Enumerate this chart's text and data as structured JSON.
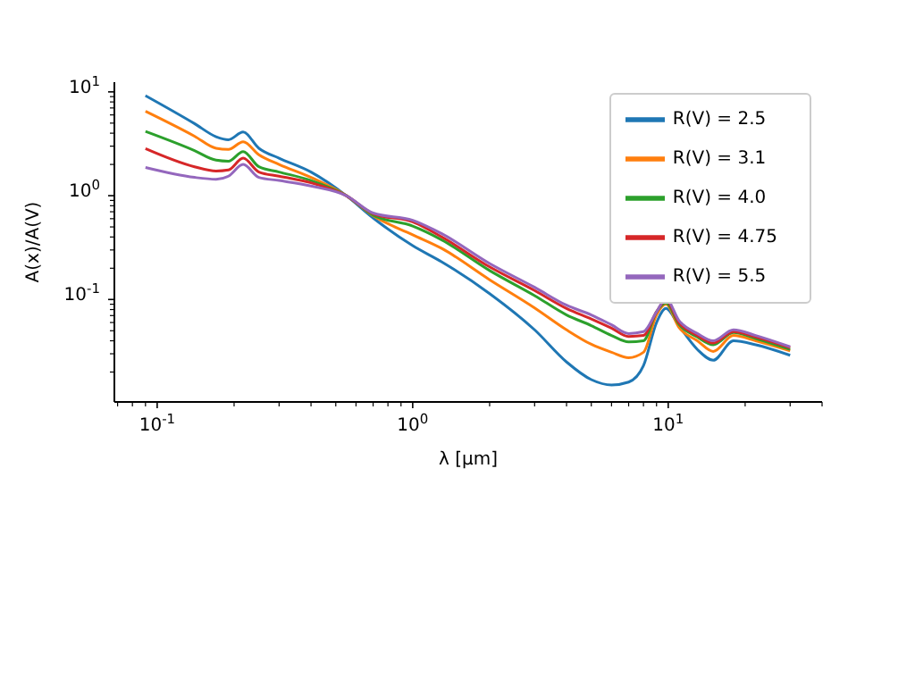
{
  "chart_data": {
    "type": "line",
    "xlabel": "λ [μm]",
    "ylabel": "A(x)/A(V)",
    "log": "xy",
    "legend": "top right",
    "grid": false,
    "marker": "none",
    "line_style": "solid",
    "x": [
      0.09,
      0.14,
      0.17,
      0.19,
      0.217,
      0.25,
      0.3,
      0.4,
      0.55,
      0.7,
      1.0,
      1.3,
      2,
      3,
      4,
      5,
      6,
      7,
      8,
      9,
      9.8,
      11,
      13,
      15,
      18,
      22,
      30
    ],
    "series": [
      {
        "name": "R(V) = 2.5",
        "color": "#1f77b4",
        "values": [
          9.2,
          4.95,
          3.7,
          3.46,
          4.1,
          2.86,
          2.3,
          1.69,
          1.0,
          0.61,
          0.33,
          0.23,
          0.114,
          0.051,
          0.025,
          0.0169,
          0.015,
          0.016,
          0.023,
          0.06,
          0.082,
          0.056,
          0.033,
          0.026,
          0.04,
          0.0366,
          0.029
        ]
      },
      {
        "name": "R(V) = 3.1",
        "color": "#ff7f0e",
        "values": [
          6.5,
          3.74,
          2.86,
          2.79,
          3.3,
          2.48,
          2.0,
          1.5,
          1.0,
          0.64,
          0.42,
          0.31,
          0.155,
          0.083,
          0.051,
          0.037,
          0.031,
          0.0275,
          0.031,
          0.071,
          0.09,
          0.054,
          0.04,
          0.0316,
          0.045,
          0.04,
          0.032
        ]
      },
      {
        "name": "R(V) = 4.0",
        "color": "#2ca02c",
        "values": [
          4.16,
          2.72,
          2.2,
          2.15,
          2.66,
          1.9,
          1.69,
          1.4,
          1.0,
          0.65,
          0.51,
          0.375,
          0.19,
          0.109,
          0.071,
          0.056,
          0.045,
          0.039,
          0.04,
          0.076,
          0.093,
          0.058,
          0.0435,
          0.0366,
          0.048,
          0.042,
          0.033
        ]
      },
      {
        "name": "R(V) = 4.75",
        "color": "#d62728",
        "values": [
          2.84,
          1.9,
          1.73,
          1.77,
          2.3,
          1.69,
          1.54,
          1.33,
          1.0,
          0.67,
          0.56,
          0.4,
          0.206,
          0.122,
          0.082,
          0.065,
          0.053,
          0.044,
          0.045,
          0.076,
          0.098,
          0.06,
          0.045,
          0.038,
          0.049,
          0.0435,
          0.0343
        ]
      },
      {
        "name": "R(V) = 5.5",
        "color": "#9467bd",
        "values": [
          1.87,
          1.5,
          1.44,
          1.54,
          2.0,
          1.5,
          1.4,
          1.24,
          1.0,
          0.68,
          0.58,
          0.43,
          0.222,
          0.131,
          0.088,
          0.071,
          0.057,
          0.047,
          0.049,
          0.076,
          0.102,
          0.063,
          0.047,
          0.04,
          0.051,
          0.045,
          0.035
        ]
      }
    ],
    "xlim": [
      0.068,
      40
    ],
    "ylim": [
      0.0103,
      12.4
    ],
    "xticks": [
      {
        "value": 0.07,
        "label": null
      },
      {
        "value": 0.08,
        "label": null
      },
      {
        "value": 0.09,
        "label": null
      },
      {
        "value": 0.1,
        "label": "10$^{-1}$"
      },
      {
        "value": 0.2,
        "label": null
      },
      {
        "value": 0.3,
        "label": null
      },
      {
        "value": 0.4,
        "label": null
      },
      {
        "value": 0.5,
        "label": null
      },
      {
        "value": 0.6,
        "label": null
      },
      {
        "value": 0.7,
        "label": null
      },
      {
        "value": 0.8,
        "label": null
      },
      {
        "value": 0.9,
        "label": null
      },
      {
        "value": 1,
        "label": "10$^{0}$"
      },
      {
        "value": 2,
        "label": null
      },
      {
        "value": 3,
        "label": null
      },
      {
        "value": 4,
        "label": null
      },
      {
        "value": 5,
        "label": null
      },
      {
        "value": 6,
        "label": null
      },
      {
        "value": 7,
        "label": null
      },
      {
        "value": 8,
        "label": null
      },
      {
        "value": 9,
        "label": null
      },
      {
        "value": 10,
        "label": "10$^{1}$"
      },
      {
        "value": 20,
        "label": null
      },
      {
        "value": 30,
        "label": null
      },
      {
        "value": 40,
        "label": null
      }
    ],
    "yticks": [
      {
        "value": 0.02,
        "label": null
      },
      {
        "value": 0.03,
        "label": null
      },
      {
        "value": 0.04,
        "label": null
      },
      {
        "value": 0.05,
        "label": null
      },
      {
        "value": 0.06,
        "label": null
      },
      {
        "value": 0.07,
        "label": null
      },
      {
        "value": 0.08,
        "label": null
      },
      {
        "value": 0.09,
        "label": null
      },
      {
        "value": 0.1,
        "label": "10$^{-1}$"
      },
      {
        "value": 0.2,
        "label": null
      },
      {
        "value": 0.3,
        "label": null
      },
      {
        "value": 0.4,
        "label": null
      },
      {
        "value": 0.5,
        "label": null
      },
      {
        "value": 0.6,
        "label": null
      },
      {
        "value": 0.7,
        "label": null
      },
      {
        "value": 0.8,
        "label": null
      },
      {
        "value": 0.9,
        "label": null
      },
      {
        "value": 1,
        "label": "10$^{0}$"
      },
      {
        "value": 2,
        "label": null
      },
      {
        "value": 3,
        "label": null
      },
      {
        "value": 4,
        "label": null
      },
      {
        "value": 5,
        "label": null
      },
      {
        "value": 6,
        "label": null
      },
      {
        "value": 7,
        "label": null
      },
      {
        "value": 8,
        "label": null
      },
      {
        "value": 9,
        "label": null
      },
      {
        "value": 10,
        "label": "10$^{1}$"
      }
    ]
  }
}
